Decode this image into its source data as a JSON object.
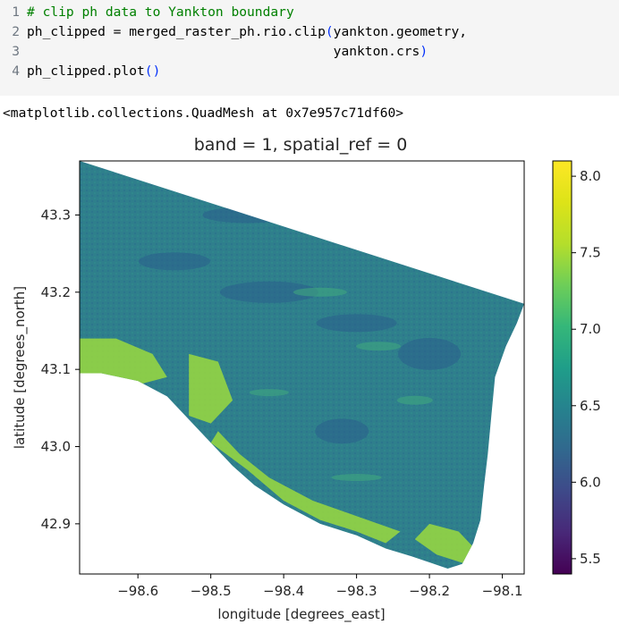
{
  "code_cell": {
    "lines": [
      {
        "num": "1",
        "segments": [
          {
            "t": "# clip ph data to Yankton boundary",
            "c": "tok-comment"
          }
        ]
      },
      {
        "num": "2",
        "segments": [
          {
            "t": "ph_clipped = merged_raster_ph.rio.clip",
            "c": "tok-op"
          },
          {
            "t": "(",
            "c": "tok-paren"
          },
          {
            "t": "yankton.geometry,",
            "c": "tok-op"
          }
        ]
      },
      {
        "num": "3",
        "segments": [
          {
            "t": "                                       yankton.crs",
            "c": "tok-op"
          },
          {
            "t": ")",
            "c": "tok-paren"
          }
        ]
      },
      {
        "num": "4",
        "segments": [
          {
            "t": "ph_clipped.plot",
            "c": "tok-op"
          },
          {
            "t": "()",
            "c": "tok-paren"
          }
        ]
      }
    ]
  },
  "output": {
    "text": "<matplotlib.collections.QuadMesh at 0x7e957c71df60>"
  },
  "chart_data": {
    "type": "heatmap",
    "title": "band = 1, spatial_ref = 0",
    "xlabel": "longitude [degrees_east]",
    "ylabel": "latitude [degrees_north]",
    "xlim": [
      -98.68,
      -98.07
    ],
    "ylim": [
      42.835,
      43.37
    ],
    "x_ticks": [
      -98.6,
      -98.5,
      -98.4,
      -98.3,
      -98.2,
      -98.1
    ],
    "x_tick_labels": [
      "−98.6",
      "−98.5",
      "−98.4",
      "−98.3",
      "−98.2",
      "−98.1"
    ],
    "y_ticks": [
      42.9,
      43.0,
      43.1,
      43.2,
      43.3
    ],
    "y_tick_labels": [
      "42.9",
      "43.0",
      "43.1",
      "43.2",
      "43.3"
    ],
    "colorbar": {
      "colormap": "viridis",
      "range": [
        5.4,
        8.1
      ],
      "ticks": [
        5.5,
        6.0,
        6.5,
        7.0,
        7.5,
        8.0
      ],
      "tick_labels": [
        "5.5",
        "6.0",
        "6.5",
        "7.0",
        "7.5",
        "8.0"
      ]
    },
    "dominant_value": 6.5,
    "high_value_zone": 7.7,
    "grid": false
  },
  "colors": {
    "background_dominant": "#2f7f8c",
    "high_zone": "#9ad93e",
    "no_data": "#ffffff"
  }
}
